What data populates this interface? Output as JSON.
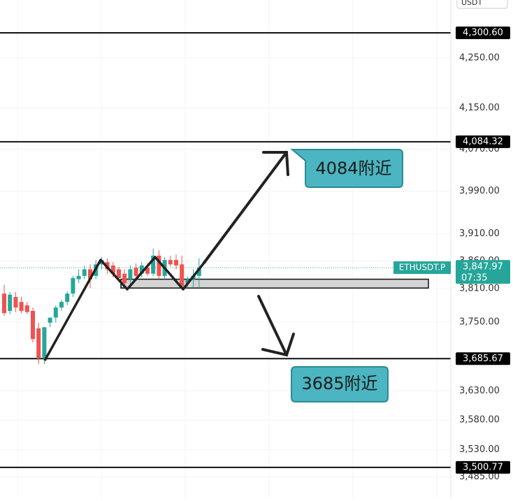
{
  "chart_data": {
    "type": "candlestick",
    "currency": "USDT",
    "log_scale": true,
    "grid": true,
    "ylim": [
      3450,
      4368
    ],
    "yticks": [
      {
        "value": 4250,
        "label": "4,250.00"
      },
      {
        "value": 4150,
        "label": "4,150.00"
      },
      {
        "value": 4070,
        "label": "4,070.00"
      },
      {
        "value": 3990,
        "label": "3,990.00"
      },
      {
        "value": 3910,
        "label": "3,910.00"
      },
      {
        "value": 3860,
        "label": "3,860.00"
      },
      {
        "value": 3810,
        "label": "3,810.00"
      },
      {
        "value": 3750,
        "label": "3,750.00"
      },
      {
        "value": 3630,
        "label": "3,630.00"
      },
      {
        "value": 3580,
        "label": "3,580.00"
      },
      {
        "value": 3530,
        "label": "3,530.00"
      },
      {
        "value": 3485,
        "label": "3,485.00"
      }
    ],
    "up_color": "#26a69a",
    "down_color": "#ef5350",
    "open": [
      3801,
      3770,
      3795,
      3786,
      3780,
      3770,
      3739,
      3686,
      3749,
      3758,
      3776,
      3786,
      3801,
      3827,
      3833,
      3845,
      3833,
      3854,
      3858,
      3852,
      3845,
      3837,
      3827,
      3848,
      3837,
      3848,
      3837,
      3870,
      3833,
      3862,
      3862,
      3854,
      3820,
      3827,
      3833
    ],
    "high": [
      3817,
      3804,
      3804,
      3795,
      3786,
      3776,
      3749,
      3741,
      3758,
      3780,
      3790,
      3805,
      3833,
      3845,
      3852,
      3854,
      3862,
      3867,
      3865,
      3858,
      3850,
      3845,
      3852,
      3856,
      3858,
      3856,
      3883,
      3880,
      3867,
      3870,
      3872,
      3870,
      3832,
      3845,
      3865
    ],
    "low": [
      3761,
      3764,
      3768,
      3766,
      3764,
      3714,
      3676,
      3676,
      3741,
      3749,
      3770,
      3780,
      3795,
      3820,
      3827,
      3811,
      3827,
      3845,
      3837,
      3830,
      3822,
      3814,
      3817,
      3830,
      3830,
      3833,
      3833,
      3827,
      3827,
      3850,
      3845,
      3811,
      3811,
      3811,
      3811
    ],
    "close": [
      3766,
      3799,
      3776,
      3770,
      3768,
      3720,
      3686,
      3741,
      3758,
      3776,
      3786,
      3801,
      3829,
      3833,
      3845,
      3827,
      3854,
      3862,
      3845,
      3837,
      3829,
      3820,
      3845,
      3833,
      3852,
      3837,
      3870,
      3833,
      3862,
      3854,
      3852,
      3814,
      3827,
      3833,
      3848
    ],
    "levels": [
      {
        "value": 4300.6,
        "label": "4,300.60"
      },
      {
        "value": 4084.32,
        "label": "4,084.32"
      },
      {
        "value": 3685.67,
        "label": "3,685.67"
      },
      {
        "value": 3500.77,
        "label": "3,500.77"
      }
    ],
    "zone": [
      3811,
      3827
    ],
    "last": {
      "symbol": "ETHUSDT.P",
      "price": {
        "value": 3847.97,
        "label": "3,847.97"
      },
      "countdown": "07:35"
    },
    "annotations": [
      "4084附近",
      "3685附近"
    ]
  }
}
